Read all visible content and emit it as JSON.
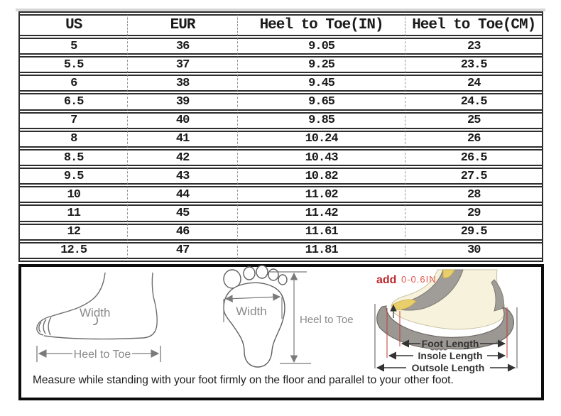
{
  "chart_data": {
    "type": "table",
    "columns": [
      "US",
      "EUR",
      "Heel to Toe(IN)",
      "Heel to Toe(CM)"
    ],
    "rows": [
      [
        "5",
        "36",
        "9.05",
        "23"
      ],
      [
        "5.5",
        "37",
        "9.25",
        "23.5"
      ],
      [
        "6",
        "38",
        "9.45",
        "24"
      ],
      [
        "6.5",
        "39",
        "9.65",
        "24.5"
      ],
      [
        "7",
        "40",
        "9.85",
        "25"
      ],
      [
        "8",
        "41",
        "10.24",
        "26"
      ],
      [
        "8.5",
        "42",
        "10.43",
        "26.5"
      ],
      [
        "9.5",
        "43",
        "10.82",
        "27.5"
      ],
      [
        "10",
        "44",
        "11.02",
        "28"
      ],
      [
        "11",
        "45",
        "11.42",
        "29"
      ],
      [
        "12",
        "46",
        "11.61",
        "29.5"
      ],
      [
        "12.5",
        "47",
        "11.81",
        "30"
      ]
    ]
  },
  "diagrams": {
    "side_foot": {
      "width_label": "Width",
      "length_label": "Heel to Toe"
    },
    "footprint": {
      "width_label": "Width",
      "length_label": "Heel to Toe"
    },
    "shoe": {
      "add_label": "add",
      "add_value": "0-0.6IN",
      "foot_length": "Foot Length",
      "insole_length": "Insole Length",
      "outsole_length": "Outsole Length"
    }
  },
  "caption": "Measure while standing with your foot firmly on the floor and parallel to your other foot.",
  "colors": {
    "table_border": "#2d2d2d",
    "column_divider": "#909090",
    "panel_border": "#0c0c0c",
    "accent_red": "#c1272d",
    "sole_gray": "#9b9793",
    "foot_cream": "#f7f2dc",
    "insole_yellow": "#e9cf6b",
    "label_gray": "#8a8a8a"
  }
}
